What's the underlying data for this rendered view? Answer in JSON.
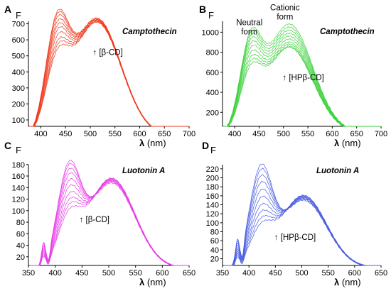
{
  "figure": {
    "label": ""
  },
  "chart_data": [
    {
      "panel": "A",
      "type": "line",
      "title": "Camptothecin",
      "ylabel": "F",
      "xlabel_symbol": "λ",
      "xlabel_unit": "(nm)",
      "xlim": [
        375,
        700
      ],
      "ylim": [
        60,
        760
      ],
      "xticks": [
        400,
        450,
        500,
        550,
        600,
        650,
        700
      ],
      "yticks": [
        100,
        200,
        300,
        400,
        500,
        600,
        700
      ],
      "color": "#f03a1e",
      "annotation": {
        "arrow": "↑",
        "text": "[β-CD]",
        "x": 505,
        "y": 505
      },
      "curve_model": {
        "peak1_x": 432,
        "peak2_x": 513,
        "width1": 32,
        "width2": 70,
        "dip_x": 385,
        "dip_depth": 0
      },
      "series": [
        {
          "name": "",
          "p1": 680,
          "p2": 735
        },
        {
          "name": "",
          "p1": 665,
          "p2": 730
        },
        {
          "name": "",
          "p1": 640,
          "p2": 730
        },
        {
          "name": "",
          "p1": 610,
          "p2": 725
        },
        {
          "name": "",
          "p1": 580,
          "p2": 725
        },
        {
          "name": "",
          "p1": 550,
          "p2": 720
        },
        {
          "name": "",
          "p1": 510,
          "p2": 720
        },
        {
          "name": "",
          "p1": 470,
          "p2": 715
        },
        {
          "name": "",
          "p1": 440,
          "p2": 712
        },
        {
          "name": "",
          "p1": 410,
          "p2": 710
        }
      ]
    },
    {
      "panel": "B",
      "type": "line",
      "title": "Camptothecin",
      "ylabel": "F",
      "xlabel_symbol": "λ",
      "xlabel_unit": "(nm)",
      "xlim": [
        375,
        700
      ],
      "ylim": [
        60,
        1180
      ],
      "xticks": [
        400,
        450,
        500,
        550,
        600,
        650,
        700
      ],
      "yticks": [
        200,
        400,
        600,
        800,
        1000
      ],
      "color": "#3ad13a",
      "annotation": {
        "arrow": "↑",
        "text": "[HPβ-CD]",
        "x": 498,
        "y": 520
      },
      "labels": [
        {
          "lines": [
            "Neutral",
            "form"
          ],
          "x": 430,
          "y": 1070
        },
        {
          "lines": [
            "Cationic",
            "form"
          ],
          "x": 503,
          "y": 1220
        }
      ],
      "curve_model": {
        "peak1_x": 432,
        "peak2_x": 512,
        "width1": 30,
        "width2": 68,
        "dip_x": 385,
        "dip_depth": 0
      },
      "series": [
        {
          "name": "",
          "p1": 880,
          "p2": 1080
        },
        {
          "name": "",
          "p1": 860,
          "p2": 1050
        },
        {
          "name": "",
          "p1": 830,
          "p2": 1020
        },
        {
          "name": "",
          "p1": 800,
          "p2": 990
        },
        {
          "name": "",
          "p1": 760,
          "p2": 960
        },
        {
          "name": "",
          "p1": 720,
          "p2": 930
        },
        {
          "name": "",
          "p1": 670,
          "p2": 900
        },
        {
          "name": "",
          "p1": 620,
          "p2": 880
        },
        {
          "name": "",
          "p1": 580,
          "p2": 860
        },
        {
          "name": "",
          "p1": 540,
          "p2": 850
        }
      ]
    },
    {
      "panel": "C",
      "type": "line",
      "title": "Luotonin A",
      "ylabel": "F",
      "xlabel_symbol": "λ",
      "xlabel_unit": "(nm)",
      "xlim": [
        350,
        650
      ],
      "ylim": [
        5,
        192
      ],
      "xticks": [
        350,
        400,
        450,
        500,
        550,
        600,
        650
      ],
      "yticks": [
        20,
        40,
        60,
        80,
        100,
        120,
        140,
        160,
        180
      ],
      "color": "#e83ce8",
      "annotation": {
        "arrow": "↑",
        "text": "[β-CD]",
        "x": 445,
        "y": 80
      },
      "curve_model": {
        "peak1_x": 425,
        "peak2_x": 505,
        "width1": 30,
        "width2": 62,
        "dip_x": 387,
        "dip_depth": 0.55
      },
      "series": [
        {
          "name": "",
          "p1": 185,
          "p2": 148
        },
        {
          "name": "",
          "p1": 178,
          "p2": 150
        },
        {
          "name": "",
          "p1": 168,
          "p2": 151
        },
        {
          "name": "",
          "p1": 158,
          "p2": 152
        },
        {
          "name": "",
          "p1": 145,
          "p2": 153
        },
        {
          "name": "",
          "p1": 132,
          "p2": 154
        },
        {
          "name": "",
          "p1": 118,
          "p2": 154
        },
        {
          "name": "",
          "p1": 105,
          "p2": 155
        },
        {
          "name": "",
          "p1": 95,
          "p2": 156
        },
        {
          "name": "",
          "p1": 85,
          "p2": 156
        }
      ]
    },
    {
      "panel": "D",
      "type": "line",
      "title": "Luotonin A",
      "ylabel": "F",
      "xlabel_symbol": "λ",
      "xlabel_unit": "(nm)",
      "xlim": [
        350,
        650
      ],
      "ylim": [
        5,
        245
      ],
      "xticks": [
        350,
        400,
        450,
        500,
        550,
        600,
        650
      ],
      "yticks": [
        20,
        40,
        60,
        80,
        100,
        120,
        140,
        160,
        180,
        200,
        220
      ],
      "color": "#4a5ee0",
      "annotation": {
        "arrow": "↑",
        "text": "[HPβ-CD]",
        "x": 448,
        "y": 62
      },
      "curve_model": {
        "peak1_x": 422,
        "peak2_x": 503,
        "width1": 30,
        "width2": 62,
        "dip_x": 387,
        "dip_depth": 0.55
      },
      "series": [
        {
          "name": "",
          "p1": 238,
          "p2": 150
        },
        {
          "name": "",
          "p1": 225,
          "p2": 152
        },
        {
          "name": "",
          "p1": 208,
          "p2": 153
        },
        {
          "name": "",
          "p1": 190,
          "p2": 155
        },
        {
          "name": "",
          "p1": 170,
          "p2": 156
        },
        {
          "name": "",
          "p1": 150,
          "p2": 157
        },
        {
          "name": "",
          "p1": 130,
          "p2": 158
        },
        {
          "name": "",
          "p1": 112,
          "p2": 159
        },
        {
          "name": "",
          "p1": 96,
          "p2": 160
        },
        {
          "name": "",
          "p1": 82,
          "p2": 161
        }
      ]
    }
  ]
}
